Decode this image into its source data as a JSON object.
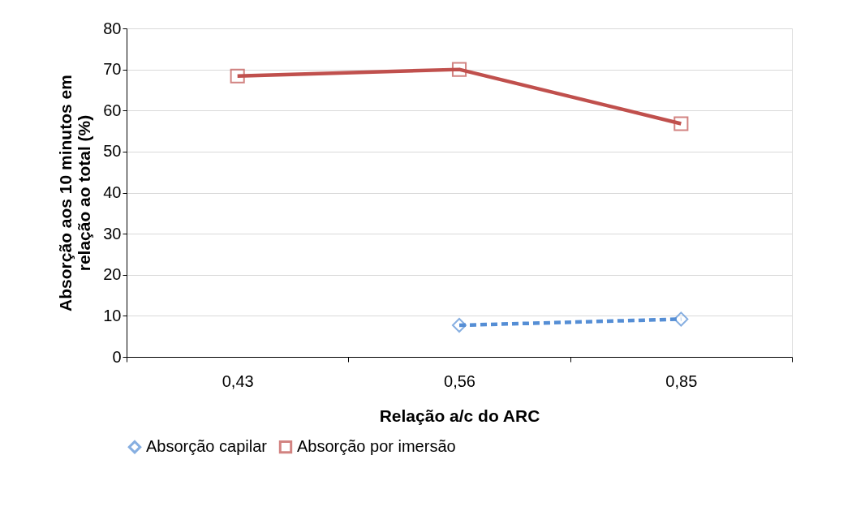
{
  "chart_data": {
    "type": "line",
    "xlabel": "Relação a/c do ARC",
    "ylabel": "Absorção aos 10 minutos em relação ao total (%)",
    "categories": [
      "0,43",
      "0,56",
      "0,85"
    ],
    "series": [
      {
        "name": "Absorção capilar",
        "color": "#558ed5",
        "values": [
          null,
          7.7,
          9.2
        ],
        "marker": "diamond",
        "line_style": "dashed"
      },
      {
        "name": "Absorção por imersão",
        "color": "#c0504d",
        "values": [
          68.4,
          70,
          56.8
        ],
        "marker": "square",
        "line_style": "solid"
      }
    ],
    "ylim": [
      0,
      80
    ],
    "yticks": [
      0,
      10,
      20,
      30,
      40,
      50,
      60,
      70,
      80
    ],
    "grid": "y",
    "legend": "bottom"
  }
}
